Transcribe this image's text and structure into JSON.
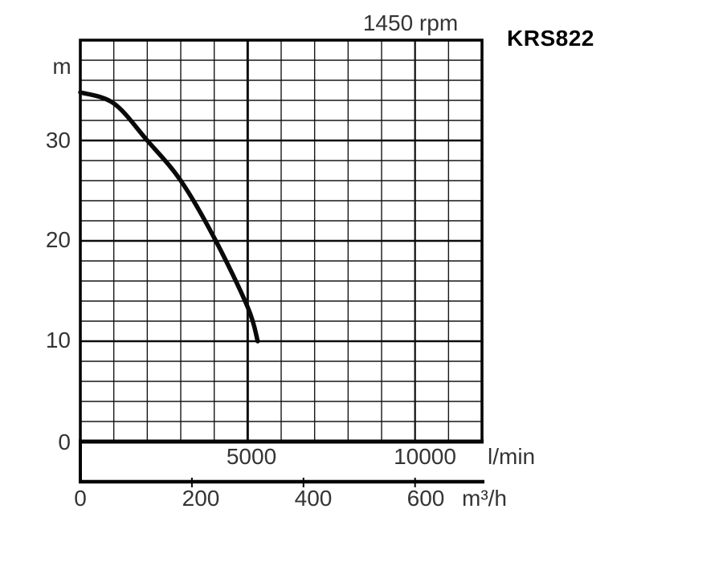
{
  "title": "KRS822",
  "rpm": "1450 rpm",
  "axes": {
    "head": {
      "unit": "m",
      "ticks": [
        "30",
        "20",
        "10",
        "0"
      ]
    },
    "flow_lmin": {
      "unit": "l/min",
      "ticks": [
        "5000",
        "10000"
      ]
    },
    "flow_m3h": {
      "unit": "m³/h",
      "ticks": [
        "0",
        "200",
        "400",
        "600"
      ]
    }
  },
  "colors": {
    "background": "#ffffff",
    "grid_minor": "#161616",
    "grid_major": "#0c0c0c",
    "border": "#050505",
    "curve": "#0a0a0a",
    "text": "#343434",
    "title_text": "#000000"
  },
  "chart_data": {
    "type": "line",
    "title": "KRS822",
    "annotation": "1450 rpm",
    "grid": "on",
    "legend": "none",
    "x_axis_primary": {
      "label": "l/min",
      "range_lmin": [
        0,
        12000
      ],
      "tick_values": [
        5000,
        10000
      ],
      "minor_step": 1000
    },
    "x_axis_secondary": {
      "label": "m³/h",
      "range_m3h": [
        0,
        720
      ],
      "tick_values": [
        0,
        200,
        400,
        600
      ],
      "lmin_per_m3h": 16.6667
    },
    "y_axis": {
      "label": "m",
      "range_m": [
        0,
        40
      ],
      "tick_values": [
        0,
        10,
        20,
        30
      ],
      "minor_step": 2
    },
    "series": [
      {
        "name": "KRS822 head-capacity curve at 1450 rpm",
        "color": "#0a0a0a",
        "points_lmin_m": [
          [
            0,
            34.8
          ],
          [
            1000,
            33.7
          ],
          [
            2000,
            30.0
          ],
          [
            3000,
            26.0
          ],
          [
            4000,
            20.3
          ],
          [
            5000,
            13.4
          ],
          [
            5300,
            10.0
          ]
        ],
        "points_m3h_m": [
          [
            0,
            34.8
          ],
          [
            60,
            33.7
          ],
          [
            120,
            30.0
          ],
          [
            180,
            26.0
          ],
          [
            240,
            20.3
          ],
          [
            300,
            13.4
          ],
          [
            318,
            10.0
          ]
        ]
      }
    ]
  }
}
